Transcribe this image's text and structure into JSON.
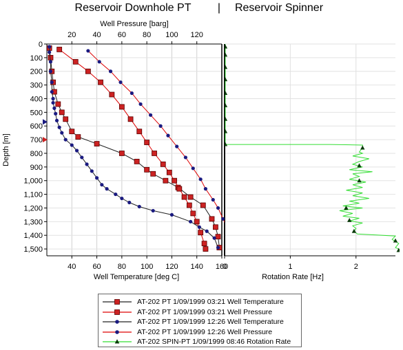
{
  "chart_data": {
    "type": "line",
    "title_left": "Reservoir Downhole PT",
    "title_separator": "|",
    "title_right": "Reservoir Spinner",
    "left_panel": {
      "ylabel": "Depth [m]",
      "ylim": [
        0,
        1550
      ],
      "yticks": [
        "0",
        "100",
        "200",
        "300",
        "400",
        "500",
        "600",
        "700",
        "800",
        "900",
        "1,000",
        "1,100",
        "1,200",
        "1,300",
        "1,400",
        "1,500"
      ],
      "ytick_values": [
        0,
        100,
        200,
        300,
        400,
        500,
        600,
        700,
        800,
        900,
        1000,
        1100,
        1200,
        1300,
        1400,
        1500
      ],
      "bottom_axis": {
        "label": "Well Temperature [deg C]",
        "lim": [
          20,
          160
        ],
        "ticks": [
          "40",
          "60",
          "80",
          "100",
          "120",
          "140",
          "160"
        ],
        "tick_values": [
          40,
          60,
          80,
          100,
          120,
          140,
          160
        ]
      },
      "top_axis": {
        "label": "Well Pressure [barg]",
        "lim": [
          0,
          140
        ],
        "ticks": [
          "20",
          "40",
          "60",
          "80",
          "100",
          "120"
        ],
        "tick_values": [
          20,
          40,
          60,
          80,
          100,
          120
        ]
      },
      "markers": [
        {
          "depth": 570,
          "temp": 21,
          "color": "#1a1a80",
          "shape": "triangle-right"
        },
        {
          "depth": 700,
          "temp": 21,
          "color": "#cc2222",
          "shape": "triangle-right"
        }
      ]
    },
    "right_panel": {
      "xlabel": "Rotation Rate [Hz]",
      "xlim": [
        0,
        2.6
      ],
      "xticks": [
        "0",
        "1",
        "2"
      ],
      "xtick_values": [
        0,
        1,
        2
      ]
    },
    "series": [
      {
        "name": "AT-202 PT 1/09/1999 03:21 Well Temperature",
        "panel": "left",
        "axis": "bottom",
        "line_color": "#222222",
        "marker": "square",
        "marker_color": "#cc2222",
        "points": [
          [
            22,
            30
          ],
          [
            23,
            100
          ],
          [
            24,
            200
          ],
          [
            25,
            280
          ],
          [
            26,
            350
          ],
          [
            29,
            440
          ],
          [
            32,
            500
          ],
          [
            35,
            550
          ],
          [
            40,
            640
          ],
          [
            45,
            680
          ],
          [
            60,
            730
          ],
          [
            80,
            800
          ],
          [
            92,
            860
          ],
          [
            100,
            920
          ],
          [
            105,
            950
          ],
          [
            115,
            1000
          ],
          [
            125,
            1050
          ],
          [
            135,
            1120
          ],
          [
            145,
            1180
          ],
          [
            152,
            1280
          ],
          [
            155,
            1340
          ],
          [
            157,
            1410
          ],
          [
            158,
            1490
          ]
        ]
      },
      {
        "name": "AT-202 PT 1/09/1999 03:21 Well Pressure",
        "panel": "left",
        "axis": "top",
        "line_color": "#dd0000",
        "marker": "square",
        "marker_color": "#cc2222",
        "points": [
          [
            10,
            40
          ],
          [
            23,
            130
          ],
          [
            33,
            200
          ],
          [
            43,
            280
          ],
          [
            52,
            370
          ],
          [
            60,
            460
          ],
          [
            67,
            550
          ],
          [
            74,
            640
          ],
          [
            80,
            720
          ],
          [
            86,
            800
          ],
          [
            93,
            880
          ],
          [
            98,
            940
          ],
          [
            102,
            1000
          ],
          [
            106,
            1060
          ],
          [
            110,
            1120
          ],
          [
            114,
            1180
          ],
          [
            117,
            1240
          ],
          [
            120,
            1300
          ],
          [
            123,
            1380
          ],
          [
            126,
            1460
          ],
          [
            127,
            1500
          ]
        ]
      },
      {
        "name": "AT-202 PT 1/09/1999 12:26 Well Temperature",
        "panel": "left",
        "axis": "bottom",
        "line_color": "#222222",
        "marker": "circle",
        "marker_color": "#1a1a80",
        "points": [
          [
            22,
            20
          ],
          [
            22,
            60
          ],
          [
            23,
            130
          ],
          [
            23,
            200
          ],
          [
            24,
            280
          ],
          [
            24,
            350
          ],
          [
            25,
            400
          ],
          [
            25,
            430
          ],
          [
            26,
            470
          ],
          [
            27,
            510
          ],
          [
            28,
            560
          ],
          [
            30,
            610
          ],
          [
            32,
            650
          ],
          [
            35,
            700
          ],
          [
            40,
            740
          ],
          [
            44,
            780
          ],
          [
            48,
            830
          ],
          [
            52,
            880
          ],
          [
            56,
            930
          ],
          [
            60,
            980
          ],
          [
            64,
            1030
          ],
          [
            68,
            1060
          ],
          [
            75,
            1100
          ],
          [
            80,
            1130
          ],
          [
            86,
            1160
          ],
          [
            94,
            1190
          ],
          [
            105,
            1220
          ],
          [
            120,
            1250
          ],
          [
            135,
            1300
          ],
          [
            142,
            1340
          ],
          [
            148,
            1370
          ],
          [
            154,
            1420
          ],
          [
            157,
            1490
          ]
        ]
      },
      {
        "name": "AT-202 PT 1/09/1999 12:26 Well Pressure",
        "panel": "left",
        "axis": "top",
        "line_color": "#dd0000",
        "marker": "circle",
        "marker_color": "#1a1a80",
        "points": [
          [
            33,
            50
          ],
          [
            42,
            130
          ],
          [
            51,
            200
          ],
          [
            59,
            280
          ],
          [
            68,
            360
          ],
          [
            75,
            440
          ],
          [
            83,
            520
          ],
          [
            91,
            600
          ],
          [
            97,
            670
          ],
          [
            104,
            750
          ],
          [
            111,
            830
          ],
          [
            117,
            910
          ],
          [
            123,
            990
          ],
          [
            127,
            1060
          ],
          [
            133,
            1140
          ],
          [
            137,
            1200
          ],
          [
            141,
            1280
          ],
          [
            144,
            1340
          ],
          [
            147,
            1400
          ],
          [
            149,
            1440
          ],
          [
            151,
            1500
          ]
        ]
      },
      {
        "name": "AT-202 SPIN-PT 1/09/1999 08:46 Rotation Rate",
        "panel": "right",
        "axis": "right",
        "line_color": "#33dd33",
        "marker": "triangle",
        "marker_color": "#0b3b0b",
        "points": [
          [
            0.01,
            0
          ],
          [
            0.01,
            100
          ],
          [
            0.01,
            200
          ],
          [
            0.01,
            300
          ],
          [
            0.01,
            400
          ],
          [
            0.01,
            500
          ],
          [
            0.01,
            600
          ],
          [
            0.01,
            700
          ],
          [
            0.01,
            735
          ],
          [
            1.6,
            735
          ],
          [
            2.1,
            740
          ],
          [
            2.1,
            760
          ],
          [
            2.05,
            790
          ],
          [
            2.1,
            800
          ],
          [
            1.95,
            820
          ],
          [
            2.2,
            840
          ],
          [
            2.05,
            860
          ],
          [
            1.95,
            880
          ],
          [
            2.1,
            900
          ],
          [
            1.9,
            920
          ],
          [
            2.25,
            935
          ],
          [
            1.95,
            950
          ],
          [
            2.05,
            970
          ],
          [
            1.9,
            990
          ],
          [
            2.15,
            1010
          ],
          [
            1.95,
            1030
          ],
          [
            2.1,
            1050
          ],
          [
            1.85,
            1070
          ],
          [
            2.1,
            1090
          ],
          [
            1.95,
            1110
          ],
          [
            2.2,
            1130
          ],
          [
            1.9,
            1150
          ],
          [
            2.05,
            1165
          ],
          [
            1.8,
            1185
          ],
          [
            2.1,
            1200
          ],
          [
            1.75,
            1220
          ],
          [
            1.95,
            1240
          ],
          [
            1.8,
            1260
          ],
          [
            2.05,
            1275
          ],
          [
            1.9,
            1295
          ],
          [
            2.1,
            1310
          ],
          [
            1.95,
            1330
          ],
          [
            2.0,
            1350
          ],
          [
            1.97,
            1370
          ],
          [
            2.02,
            1390
          ],
          [
            2.6,
            1405
          ],
          [
            2.55,
            1430
          ],
          [
            2.65,
            1460
          ],
          [
            2.6,
            1490
          ],
          [
            2.7,
            1510
          ]
        ],
        "marker_points": [
          [
            0.01,
            20
          ],
          [
            0.01,
            80
          ],
          [
            0.01,
            170
          ],
          [
            0.01,
            260
          ],
          [
            0.01,
            360
          ],
          [
            0.01,
            450
          ],
          [
            0.01,
            550
          ],
          [
            0.01,
            640
          ],
          [
            0.01,
            735
          ],
          [
            2.1,
            760
          ],
          [
            2.05,
            890
          ],
          [
            2.05,
            1000
          ],
          [
            1.85,
            1200
          ],
          [
            1.9,
            1290
          ],
          [
            1.97,
            1370
          ],
          [
            2.6,
            1440
          ],
          [
            2.65,
            1510
          ]
        ]
      }
    ]
  }
}
